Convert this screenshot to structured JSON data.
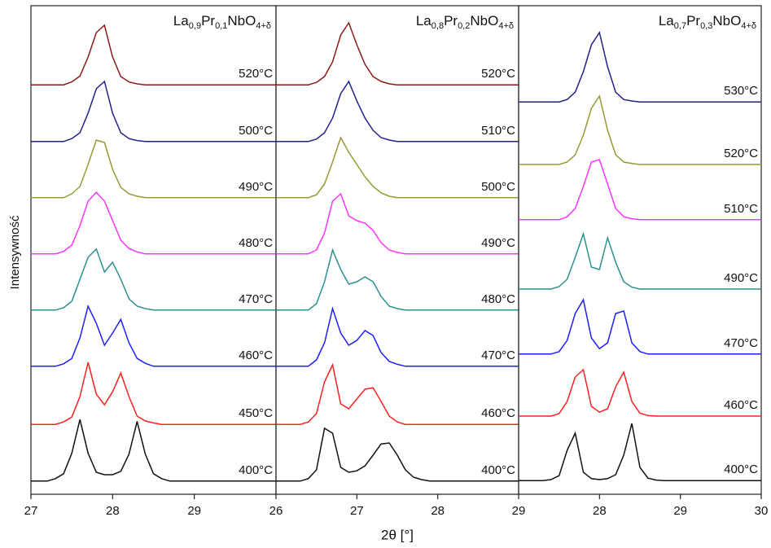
{
  "figure": {
    "xlabel": "2θ [°]",
    "ylabel": "Intensywność"
  },
  "chart_data": [
    {
      "type": "line",
      "title": "La0,9Pr0,1NbO4+δ",
      "xlim": [
        27,
        30
      ],
      "xticks": [
        27,
        28,
        29
      ],
      "ylim": [
        0,
        100
      ],
      "x": [
        27,
        27.1,
        27.2,
        27.3,
        27.4,
        27.5,
        27.6,
        27.7,
        27.8,
        27.9,
        28,
        28.1,
        28.2,
        28.3,
        28.4,
        28.5,
        28.6,
        28.7,
        28.8,
        28.9,
        29,
        29.1,
        29.2,
        29.3,
        29.4,
        29.5,
        29.6,
        29.7,
        29.8,
        29.9,
        30
      ],
      "series": [
        {
          "name": "400°C",
          "color": "#111111",
          "values": [
            2.7,
            2.7,
            2.7,
            3.2,
            4.2,
            8.4,
            15.3,
            8.4,
            4.5,
            4.0,
            4.0,
            4.7,
            8.2,
            14.9,
            8.2,
            4.2,
            3.2,
            2.7,
            2.7,
            2.7,
            2.7,
            2.7,
            2.7,
            2.7,
            2.7,
            2.7,
            2.7,
            2.7,
            2.7,
            2.7,
            2.7
          ]
        },
        {
          "name": "450°C",
          "color": "#ff2020",
          "values": [
            14.3,
            14.3,
            14.3,
            14.3,
            14.8,
            15.8,
            20.0,
            27.0,
            20.5,
            18.3,
            21.0,
            24.8,
            20.0,
            16.0,
            15.0,
            14.6,
            14.3,
            14.3,
            14.3,
            14.3,
            14.3,
            14.3,
            14.3,
            14.3,
            14.3,
            14.3,
            14.3,
            14.3,
            14.3,
            14.3,
            14.3
          ]
        },
        {
          "name": "460°C",
          "color": "#1f1fff",
          "values": [
            26.2,
            26.2,
            26.2,
            26.2,
            26.7,
            27.8,
            32.0,
            38.5,
            35.0,
            30.5,
            33.0,
            35.8,
            31.0,
            27.8,
            26.8,
            26.2,
            26.2,
            26.2,
            26.2,
            26.2,
            26.2,
            26.2,
            26.2,
            26.2,
            26.2,
            26.2,
            26.2,
            26.2,
            26.2,
            26.2,
            26.2
          ]
        },
        {
          "name": "470°C",
          "color": "#2b9090",
          "values": [
            37.7,
            37.7,
            37.7,
            37.7,
            38.2,
            39.5,
            44.0,
            48.5,
            50.2,
            45.5,
            47.5,
            44.0,
            40.0,
            38.5,
            38.0,
            37.7,
            37.7,
            37.7,
            37.7,
            37.7,
            37.7,
            37.7,
            37.7,
            37.7,
            37.7,
            37.7,
            37.7,
            37.7,
            37.7,
            37.7,
            37.7
          ]
        },
        {
          "name": "480°C",
          "color": "#ff33ff",
          "values": [
            49.2,
            49.2,
            49.2,
            49.2,
            49.7,
            51.0,
            55.0,
            60.0,
            61.8,
            60.0,
            56.0,
            52.0,
            50.3,
            49.6,
            49.2,
            49.2,
            49.2,
            49.2,
            49.2,
            49.2,
            49.2,
            49.2,
            49.2,
            49.2,
            49.2,
            49.2,
            49.2,
            49.2,
            49.2,
            49.2,
            49.2
          ]
        },
        {
          "name": "490°C",
          "color": "#999933",
          "values": [
            60.7,
            60.7,
            60.7,
            60.7,
            60.7,
            61.5,
            63.0,
            67.5,
            72.5,
            72.0,
            66.5,
            62.8,
            61.5,
            61.0,
            60.7,
            60.7,
            60.7,
            60.7,
            60.7,
            60.7,
            60.7,
            60.7,
            60.7,
            60.7,
            60.7,
            60.7,
            60.7,
            60.7,
            60.7,
            60.7,
            60.7
          ]
        },
        {
          "name": "500°C",
          "color": "#22228a",
          "values": [
            72.2,
            72.2,
            72.2,
            72.2,
            72.2,
            72.8,
            74.0,
            78.0,
            83.0,
            84.5,
            78.0,
            74.0,
            72.8,
            72.4,
            72.2,
            72.2,
            72.2,
            72.2,
            72.2,
            72.2,
            72.2,
            72.2,
            72.2,
            72.2,
            72.2,
            72.2,
            72.2,
            72.2,
            72.2,
            72.2,
            72.2
          ]
        },
        {
          "name": "520°C",
          "color": "#8b1a1a",
          "values": [
            83.8,
            83.8,
            83.8,
            83.8,
            83.8,
            84.4,
            85.6,
            89.5,
            94.5,
            96.0,
            89.5,
            85.5,
            84.4,
            84.0,
            83.8,
            83.8,
            83.8,
            83.8,
            83.8,
            83.8,
            83.8,
            83.8,
            83.8,
            83.8,
            83.8,
            83.8,
            83.8,
            83.8,
            83.8,
            83.8,
            83.8
          ]
        }
      ]
    },
    {
      "type": "line",
      "title": "La0,8Pr0,2NbO4+δ",
      "xlim": [
        26,
        29
      ],
      "xticks": [
        26,
        27,
        28,
        29
      ],
      "ylim": [
        0,
        100
      ],
      "x": [
        26,
        26.1,
        26.2,
        26.3,
        26.4,
        26.5,
        26.6,
        26.7,
        26.8,
        26.9,
        27,
        27.1,
        27.2,
        27.3,
        27.4,
        27.5,
        27.6,
        27.7,
        27.8,
        27.9,
        28,
        28.1,
        28.2,
        28.3,
        28.4,
        28.5,
        28.6,
        28.7,
        28.8,
        28.9,
        29
      ],
      "series": [
        {
          "name": "400°C",
          "color": "#111111",
          "values": [
            2.7,
            2.7,
            2.7,
            2.7,
            3.2,
            5.0,
            13.5,
            12.5,
            5.5,
            4.5,
            4.8,
            5.8,
            8.0,
            10.3,
            10.5,
            8.0,
            5.0,
            3.5,
            3.0,
            2.7,
            2.7,
            2.7,
            2.7,
            2.7,
            2.7,
            2.7,
            2.7,
            2.7,
            2.7,
            2.7,
            2.7
          ]
        },
        {
          "name": "460°C",
          "color": "#ff2020",
          "values": [
            14.3,
            14.3,
            14.3,
            14.3,
            14.8,
            16.5,
            23.0,
            26.5,
            18.5,
            17.5,
            19.5,
            21.5,
            21.8,
            19.0,
            16.0,
            14.8,
            14.3,
            14.3,
            14.3,
            14.3,
            14.3,
            14.3,
            14.3,
            14.3,
            14.3,
            14.3,
            14.3,
            14.3,
            14.3,
            14.3,
            14.3
          ]
        },
        {
          "name": "470°C",
          "color": "#1f1fff",
          "values": [
            26.2,
            26.2,
            26.2,
            26.2,
            26.2,
            27.5,
            31.0,
            38.0,
            33.0,
            30.5,
            31.5,
            33.5,
            32.5,
            29.0,
            27.2,
            26.6,
            26.2,
            26.2,
            26.2,
            26.2,
            26.2,
            26.2,
            26.2,
            26.2,
            26.2,
            26.2,
            26.2,
            26.2,
            26.2,
            26.2,
            26.2
          ]
        },
        {
          "name": "480°C",
          "color": "#2b9090",
          "values": [
            37.7,
            37.7,
            37.7,
            37.7,
            37.7,
            39.0,
            43.5,
            50.0,
            46.0,
            43.0,
            43.5,
            44.5,
            43.5,
            40.5,
            38.5,
            38.0,
            37.7,
            37.7,
            37.7,
            37.7,
            37.7,
            37.7,
            37.7,
            37.7,
            37.7,
            37.7,
            37.7,
            37.7,
            37.7,
            37.7,
            37.7
          ]
        },
        {
          "name": "490°C",
          "color": "#ff33ff",
          "values": [
            49.2,
            49.2,
            49.2,
            49.2,
            49.2,
            50.0,
            53.5,
            60.0,
            61.5,
            57.0,
            56.0,
            55.5,
            54.0,
            51.5,
            50.0,
            49.5,
            49.2,
            49.2,
            49.2,
            49.2,
            49.2,
            49.2,
            49.2,
            49.2,
            49.2,
            49.2,
            49.2,
            49.2,
            49.2,
            49.2,
            49.2
          ]
        },
        {
          "name": "500°C",
          "color": "#999933",
          "values": [
            60.7,
            60.7,
            60.7,
            60.7,
            60.7,
            61.3,
            63.5,
            68.0,
            73.0,
            70.0,
            67.5,
            65.0,
            63.0,
            61.7,
            61.0,
            60.7,
            60.7,
            60.7,
            60.7,
            60.7,
            60.7,
            60.7,
            60.7,
            60.7,
            60.7,
            60.7,
            60.7,
            60.7,
            60.7,
            60.7,
            60.7
          ]
        },
        {
          "name": "510°C",
          "color": "#22228a",
          "values": [
            72.2,
            72.2,
            72.2,
            72.2,
            72.2,
            72.7,
            74.0,
            77.0,
            82.0,
            84.5,
            80.5,
            77.0,
            74.5,
            73.0,
            72.5,
            72.2,
            72.2,
            72.2,
            72.2,
            72.2,
            72.2,
            72.2,
            72.2,
            72.2,
            72.2,
            72.2,
            72.2,
            72.2,
            72.2,
            72.2,
            72.2
          ]
        },
        {
          "name": "520°C",
          "color": "#8b1a1a",
          "values": [
            83.8,
            83.8,
            83.8,
            83.8,
            83.8,
            84.3,
            85.5,
            88.5,
            94.0,
            96.5,
            92.0,
            88.0,
            85.5,
            84.5,
            84.0,
            83.8,
            83.8,
            83.8,
            83.8,
            83.8,
            83.8,
            83.8,
            83.8,
            83.8,
            83.8,
            83.8,
            83.8,
            83.8,
            83.8,
            83.8,
            83.8
          ]
        }
      ]
    },
    {
      "type": "line",
      "title": "La0,7Pr0,3NbO4+δ",
      "xlim": [
        27,
        30
      ],
      "xticks": [
        28,
        29,
        30
      ],
      "ylim": [
        0,
        100
      ],
      "x": [
        27,
        27.1,
        27.2,
        27.3,
        27.4,
        27.5,
        27.6,
        27.7,
        27.8,
        27.9,
        28,
        28.1,
        28.2,
        28.3,
        28.4,
        28.5,
        28.6,
        28.7,
        28.8,
        28.9,
        29,
        29.1,
        29.2,
        29.3,
        29.4,
        29.5,
        29.6,
        29.7,
        29.8,
        29.9,
        30
      ],
      "series": [
        {
          "name": "400°C",
          "color": "#111111",
          "values": [
            2.8,
            2.8,
            2.8,
            2.8,
            3.0,
            3.8,
            9.0,
            12.5,
            4.5,
            3.2,
            3.0,
            3.2,
            4.0,
            8.0,
            14.5,
            5.5,
            3.3,
            2.9,
            2.8,
            2.8,
            2.8,
            2.8,
            2.8,
            2.8,
            2.8,
            2.8,
            2.8,
            2.8,
            2.8,
            2.8,
            2.8
          ]
        },
        {
          "name": "460°C",
          "color": "#ff2020",
          "values": [
            16.0,
            16.0,
            16.0,
            16.0,
            16.0,
            16.5,
            19.0,
            24.0,
            25.5,
            18.0,
            16.8,
            17.5,
            22.0,
            25.0,
            19.0,
            16.6,
            16.1,
            16.0,
            16.0,
            16.0,
            16.0,
            16.0,
            16.0,
            16.0,
            16.0,
            16.0,
            16.0,
            16.0,
            16.0,
            16.0,
            16.0
          ]
        },
        {
          "name": "470°C",
          "color": "#1f1fff",
          "values": [
            28.7,
            28.7,
            28.7,
            28.7,
            28.7,
            29.2,
            31.5,
            37.0,
            39.8,
            32.0,
            29.8,
            31.0,
            37.0,
            37.5,
            31.0,
            29.2,
            28.7,
            28.7,
            28.7,
            28.7,
            28.7,
            28.7,
            28.7,
            28.7,
            28.7,
            28.7,
            28.7,
            28.7,
            28.7,
            28.7,
            28.7
          ]
        },
        {
          "name": "490°C",
          "color": "#2b9090",
          "values": [
            42.0,
            42.0,
            42.0,
            42.0,
            42.0,
            42.5,
            44.0,
            48.5,
            53.3,
            46.5,
            46.0,
            52.5,
            47.5,
            43.5,
            42.4,
            42.0,
            42.0,
            42.0,
            42.0,
            42.0,
            42.0,
            42.0,
            42.0,
            42.0,
            42.0,
            42.0,
            42.0,
            42.0,
            42.0,
            42.0,
            42.0
          ]
        },
        {
          "name": "510°C",
          "color": "#ff33ff",
          "values": [
            56.2,
            56.2,
            56.2,
            56.2,
            56.2,
            56.2,
            56.8,
            58.5,
            63.0,
            68.0,
            68.5,
            63.5,
            58.5,
            56.8,
            56.4,
            56.2,
            56.2,
            56.2,
            56.2,
            56.2,
            56.2,
            56.2,
            56.2,
            56.2,
            56.2,
            56.2,
            56.2,
            56.2,
            56.2,
            56.2,
            56.2
          ]
        },
        {
          "name": "520°C",
          "color": "#999933",
          "values": [
            67.5,
            67.5,
            67.5,
            67.5,
            67.5,
            67.5,
            68.0,
            69.5,
            73.5,
            79.0,
            81.5,
            74.5,
            69.5,
            68.0,
            67.7,
            67.5,
            67.5,
            67.5,
            67.5,
            67.5,
            67.5,
            67.5,
            67.5,
            67.5,
            67.5,
            67.5,
            67.5,
            67.5,
            67.5,
            67.5,
            67.5
          ]
        },
        {
          "name": "530°C",
          "color": "#22228a",
          "values": [
            80.3,
            80.3,
            80.3,
            80.3,
            80.3,
            80.3,
            80.8,
            82.3,
            86.5,
            92.0,
            94.5,
            87.5,
            82.3,
            80.8,
            80.5,
            80.3,
            80.3,
            80.3,
            80.3,
            80.3,
            80.3,
            80.3,
            80.3,
            80.3,
            80.3,
            80.3,
            80.3,
            80.3,
            80.3,
            80.3,
            80.3
          ]
        }
      ]
    }
  ]
}
